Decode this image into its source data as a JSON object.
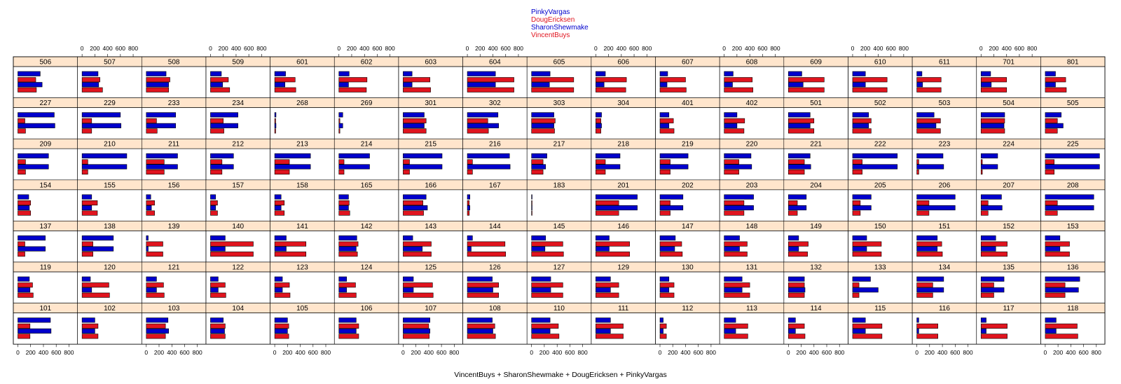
{
  "chart_data": {
    "type": "bar",
    "orientation": "horizontal",
    "stacked": false,
    "xlabel": "VincentBuys + SharonShewmake + DougEricksen + PinkyVargas",
    "xlim": [
      0,
      900
    ],
    "xticks": [
      0,
      200,
      400,
      600,
      800
    ],
    "layout": {
      "columns": 17,
      "rows": 7
    },
    "grid": false,
    "legend": {
      "placement": "top-center",
      "entries": [
        {
          "name": "PinkyVargas",
          "color": "#0000CC"
        },
        {
          "name": "DougEricksen",
          "color": "#E0141E"
        },
        {
          "name": "SharonShewmake",
          "color": "#0000CC"
        },
        {
          "name": "VincentBuys",
          "color": "#E0141E"
        }
      ]
    },
    "bar_order_top_to_bottom": [
      "PinkyVargas",
      "DougEricksen",
      "SharonShewmake",
      "VincentBuys"
    ],
    "panel_rows": [
      [
        {
          "label": "506",
          "values": [
            350,
            280,
            380,
            290
          ]
        },
        {
          "label": "507",
          "values": [
            250,
            280,
            260,
            320
          ]
        },
        {
          "label": "508",
          "values": [
            310,
            370,
            350,
            350
          ]
        },
        {
          "label": "509",
          "values": [
            170,
            280,
            190,
            300
          ]
        },
        {
          "label": "601",
          "values": [
            170,
            320,
            160,
            330
          ]
        },
        {
          "label": "602",
          "values": [
            160,
            440,
            150,
            430
          ]
        },
        {
          "label": "603",
          "values": [
            140,
            420,
            140,
            430
          ]
        },
        {
          "label": "604",
          "values": [
            440,
            730,
            440,
            730
          ]
        },
        {
          "label": "605",
          "values": [
            290,
            660,
            280,
            660
          ]
        },
        {
          "label": "606",
          "values": [
            150,
            480,
            130,
            470
          ]
        },
        {
          "label": "607",
          "values": [
            120,
            400,
            110,
            410
          ]
        },
        {
          "label": "608",
          "values": [
            140,
            440,
            130,
            450
          ]
        },
        {
          "label": "609",
          "values": [
            210,
            560,
            230,
            560
          ]
        },
        {
          "label": "610",
          "values": [
            200,
            540,
            200,
            540
          ]
        },
        {
          "label": "611",
          "values": [
            80,
            380,
            90,
            380
          ]
        },
        {
          "label": "701",
          "values": [
            150,
            400,
            160,
            400
          ]
        },
        {
          "label": "801",
          "values": [
            160,
            320,
            160,
            330
          ]
        }
      ],
      [
        {
          "label": "227",
          "values": [
            570,
            110,
            580,
            120
          ]
        },
        {
          "label": "229",
          "values": [
            600,
            150,
            610,
            150
          ]
        },
        {
          "label": "233",
          "values": [
            460,
            160,
            460,
            170
          ]
        },
        {
          "label": "234",
          "values": [
            430,
            200,
            430,
            210
          ]
        },
        {
          "label": "268",
          "values": [
            20,
            15,
            20,
            15
          ]
        },
        {
          "label": "269",
          "values": [
            60,
            15,
            60,
            15
          ]
        },
        {
          "label": "301",
          "values": [
            330,
            360,
            330,
            360
          ]
        },
        {
          "label": "302",
          "values": [
            480,
            320,
            490,
            330
          ]
        },
        {
          "label": "303",
          "values": [
            350,
            370,
            350,
            360
          ]
        },
        {
          "label": "304",
          "values": [
            90,
            80,
            90,
            80
          ]
        },
        {
          "label": "401",
          "values": [
            140,
            210,
            140,
            220
          ]
        },
        {
          "label": "402",
          "values": [
            200,
            320,
            200,
            310
          ]
        },
        {
          "label": "501",
          "values": [
            340,
            400,
            340,
            400
          ]
        },
        {
          "label": "502",
          "values": [
            250,
            290,
            250,
            290
          ]
        },
        {
          "label": "503",
          "values": [
            270,
            370,
            300,
            370
          ]
        },
        {
          "label": "504",
          "values": [
            370,
            370,
            360,
            370
          ]
        },
        {
          "label": "505",
          "values": [
            250,
            190,
            280,
            190
          ]
        }
      ],
      [
        {
          "label": "209",
          "values": [
            480,
            120,
            480,
            120
          ]
        },
        {
          "label": "210",
          "values": [
            700,
            90,
            700,
            90
          ]
        },
        {
          "label": "211",
          "values": [
            490,
            280,
            490,
            280
          ]
        },
        {
          "label": "212",
          "values": [
            360,
            180,
            360,
            180
          ]
        },
        {
          "label": "213",
          "values": [
            560,
            230,
            560,
            230
          ]
        },
        {
          "label": "214",
          "values": [
            480,
            80,
            480,
            80
          ]
        },
        {
          "label": "215",
          "values": [
            610,
            100,
            610,
            100
          ]
        },
        {
          "label": "216",
          "values": [
            660,
            80,
            670,
            80
          ]
        },
        {
          "label": "217",
          "values": [
            240,
            180,
            220,
            180
          ]
        },
        {
          "label": "218",
          "values": [
            380,
            150,
            380,
            150
          ]
        },
        {
          "label": "219",
          "values": [
            440,
            160,
            440,
            160
          ]
        },
        {
          "label": "220",
          "values": [
            420,
            230,
            430,
            230
          ]
        },
        {
          "label": "221",
          "values": [
            340,
            250,
            350,
            250
          ]
        },
        {
          "label": "222",
          "values": [
            700,
            150,
            700,
            150
          ]
        },
        {
          "label": "223",
          "values": [
            410,
            30,
            420,
            30
          ]
        },
        {
          "label": "224",
          "values": [
            260,
            20,
            260,
            20
          ]
        },
        {
          "label": "225",
          "values": [
            850,
            140,
            850,
            140
          ]
        }
      ],
      [
        {
          "label": "154",
          "values": [
            170,
            200,
            180,
            200
          ]
        },
        {
          "label": "155",
          "values": [
            150,
            240,
            150,
            240
          ]
        },
        {
          "label": "156",
          "values": [
            70,
            130,
            80,
            130
          ]
        },
        {
          "label": "157",
          "values": [
            80,
            110,
            80,
            110
          ]
        },
        {
          "label": "158",
          "values": [
            100,
            150,
            100,
            150
          ]
        },
        {
          "label": "165",
          "values": [
            150,
            160,
            150,
            170
          ]
        },
        {
          "label": "166",
          "values": [
            360,
            310,
            380,
            320
          ]
        },
        {
          "label": "167",
          "values": [
            40,
            30,
            40,
            30
          ]
        },
        {
          "label": "183",
          "values": [
            8,
            8,
            8,
            8
          ]
        },
        {
          "label": "201",
          "values": [
            650,
            360,
            650,
            360
          ]
        },
        {
          "label": "202",
          "values": [
            360,
            160,
            360,
            160
          ]
        },
        {
          "label": "203",
          "values": [
            460,
            310,
            460,
            310
          ]
        },
        {
          "label": "204",
          "values": [
            280,
            140,
            280,
            140
          ]
        },
        {
          "label": "205",
          "values": [
            290,
            120,
            290,
            120
          ]
        },
        {
          "label": "206",
          "values": [
            600,
            190,
            600,
            190
          ]
        },
        {
          "label": "207",
          "values": [
            320,
            110,
            330,
            110
          ]
        },
        {
          "label": "208",
          "values": [
            760,
            190,
            760,
            190
          ]
        }
      ],
      [
        {
          "label": "137",
          "values": [
            430,
            110,
            430,
            110
          ]
        },
        {
          "label": "138",
          "values": [
            490,
            170,
            490,
            170
          ]
        },
        {
          "label": "139",
          "values": [
            30,
            260,
            30,
            260
          ]
        },
        {
          "label": "140",
          "values": [
            230,
            670,
            230,
            670
          ]
        },
        {
          "label": "141",
          "values": [
            180,
            490,
            180,
            490
          ]
        },
        {
          "label": "142",
          "values": [
            280,
            300,
            270,
            290
          ]
        },
        {
          "label": "143",
          "values": [
            150,
            440,
            300,
            440
          ]
        },
        {
          "label": "144",
          "values": [
            80,
            590,
            60,
            600
          ]
        },
        {
          "label": "145",
          "values": [
            220,
            490,
            210,
            500
          ]
        },
        {
          "label": "146",
          "values": [
            210,
            530,
            210,
            530
          ]
        },
        {
          "label": "147",
          "values": [
            240,
            340,
            230,
            350
          ]
        },
        {
          "label": "148",
          "values": [
            240,
            360,
            240,
            360
          ]
        },
        {
          "label": "149",
          "values": [
            160,
            310,
            160,
            300
          ]
        },
        {
          "label": "150",
          "values": [
            220,
            450,
            220,
            450
          ]
        },
        {
          "label": "151",
          "values": [
            320,
            390,
            320,
            400
          ]
        },
        {
          "label": "152",
          "values": [
            230,
            410,
            230,
            410
          ]
        },
        {
          "label": "153",
          "values": [
            230,
            380,
            230,
            380
          ]
        }
      ],
      [
        {
          "label": "119",
          "values": [
            180,
            230,
            190,
            240
          ]
        },
        {
          "label": "120",
          "values": [
            130,
            420,
            150,
            430
          ]
        },
        {
          "label": "121",
          "values": [
            160,
            270,
            160,
            280
          ]
        },
        {
          "label": "122",
          "values": [
            120,
            230,
            120,
            240
          ]
        },
        {
          "label": "123",
          "values": [
            120,
            230,
            120,
            240
          ]
        },
        {
          "label": "124",
          "values": [
            120,
            260,
            120,
            270
          ]
        },
        {
          "label": "125",
          "values": [
            160,
            460,
            160,
            470
          ]
        },
        {
          "label": "126",
          "values": [
            390,
            490,
            400,
            490
          ]
        },
        {
          "label": "127",
          "values": [
            300,
            490,
            300,
            490
          ]
        },
        {
          "label": "129",
          "values": [
            230,
            360,
            230,
            360
          ]
        },
        {
          "label": "130",
          "values": [
            140,
            220,
            140,
            220
          ]
        },
        {
          "label": "131",
          "values": [
            280,
            400,
            280,
            400
          ]
        },
        {
          "label": "132",
          "values": [
            250,
            250,
            260,
            250
          ]
        },
        {
          "label": "133",
          "values": [
            280,
            100,
            400,
            100
          ]
        },
        {
          "label": "134",
          "values": [
            420,
            250,
            420,
            250
          ]
        },
        {
          "label": "135",
          "values": [
            360,
            200,
            360,
            200
          ]
        },
        {
          "label": "136",
          "values": [
            540,
            310,
            520,
            310
          ]
        }
      ],
      [
        {
          "label": "101",
          "values": [
            510,
            190,
            520,
            190
          ]
        },
        {
          "label": "102",
          "values": [
            200,
            250,
            200,
            250
          ]
        },
        {
          "label": "103",
          "values": [
            340,
            300,
            350,
            300
          ]
        },
        {
          "label": "104",
          "values": [
            200,
            230,
            220,
            230
          ]
        },
        {
          "label": "105",
          "values": [
            200,
            220,
            200,
            220
          ]
        },
        {
          "label": "106",
          "values": [
            270,
            310,
            270,
            310
          ]
        },
        {
          "label": "107",
          "values": [
            420,
            400,
            420,
            410
          ]
        },
        {
          "label": "108",
          "values": [
            390,
            430,
            400,
            440
          ]
        },
        {
          "label": "110",
          "values": [
            290,
            420,
            290,
            430
          ]
        },
        {
          "label": "111",
          "values": [
            230,
            430,
            230,
            430
          ]
        },
        {
          "label": "112",
          "values": [
            50,
            100,
            50,
            100
          ]
        },
        {
          "label": "113",
          "values": [
            180,
            370,
            180,
            370
          ]
        },
        {
          "label": "114",
          "values": [
            110,
            250,
            110,
            260
          ]
        },
        {
          "label": "115",
          "values": [
            200,
            460,
            200,
            460
          ]
        },
        {
          "label": "116",
          "values": [
            30,
            330,
            30,
            330
          ]
        },
        {
          "label": "117",
          "values": [
            80,
            410,
            80,
            410
          ]
        },
        {
          "label": "118",
          "values": [
            170,
            500,
            170,
            510
          ]
        }
      ]
    ]
  }
}
